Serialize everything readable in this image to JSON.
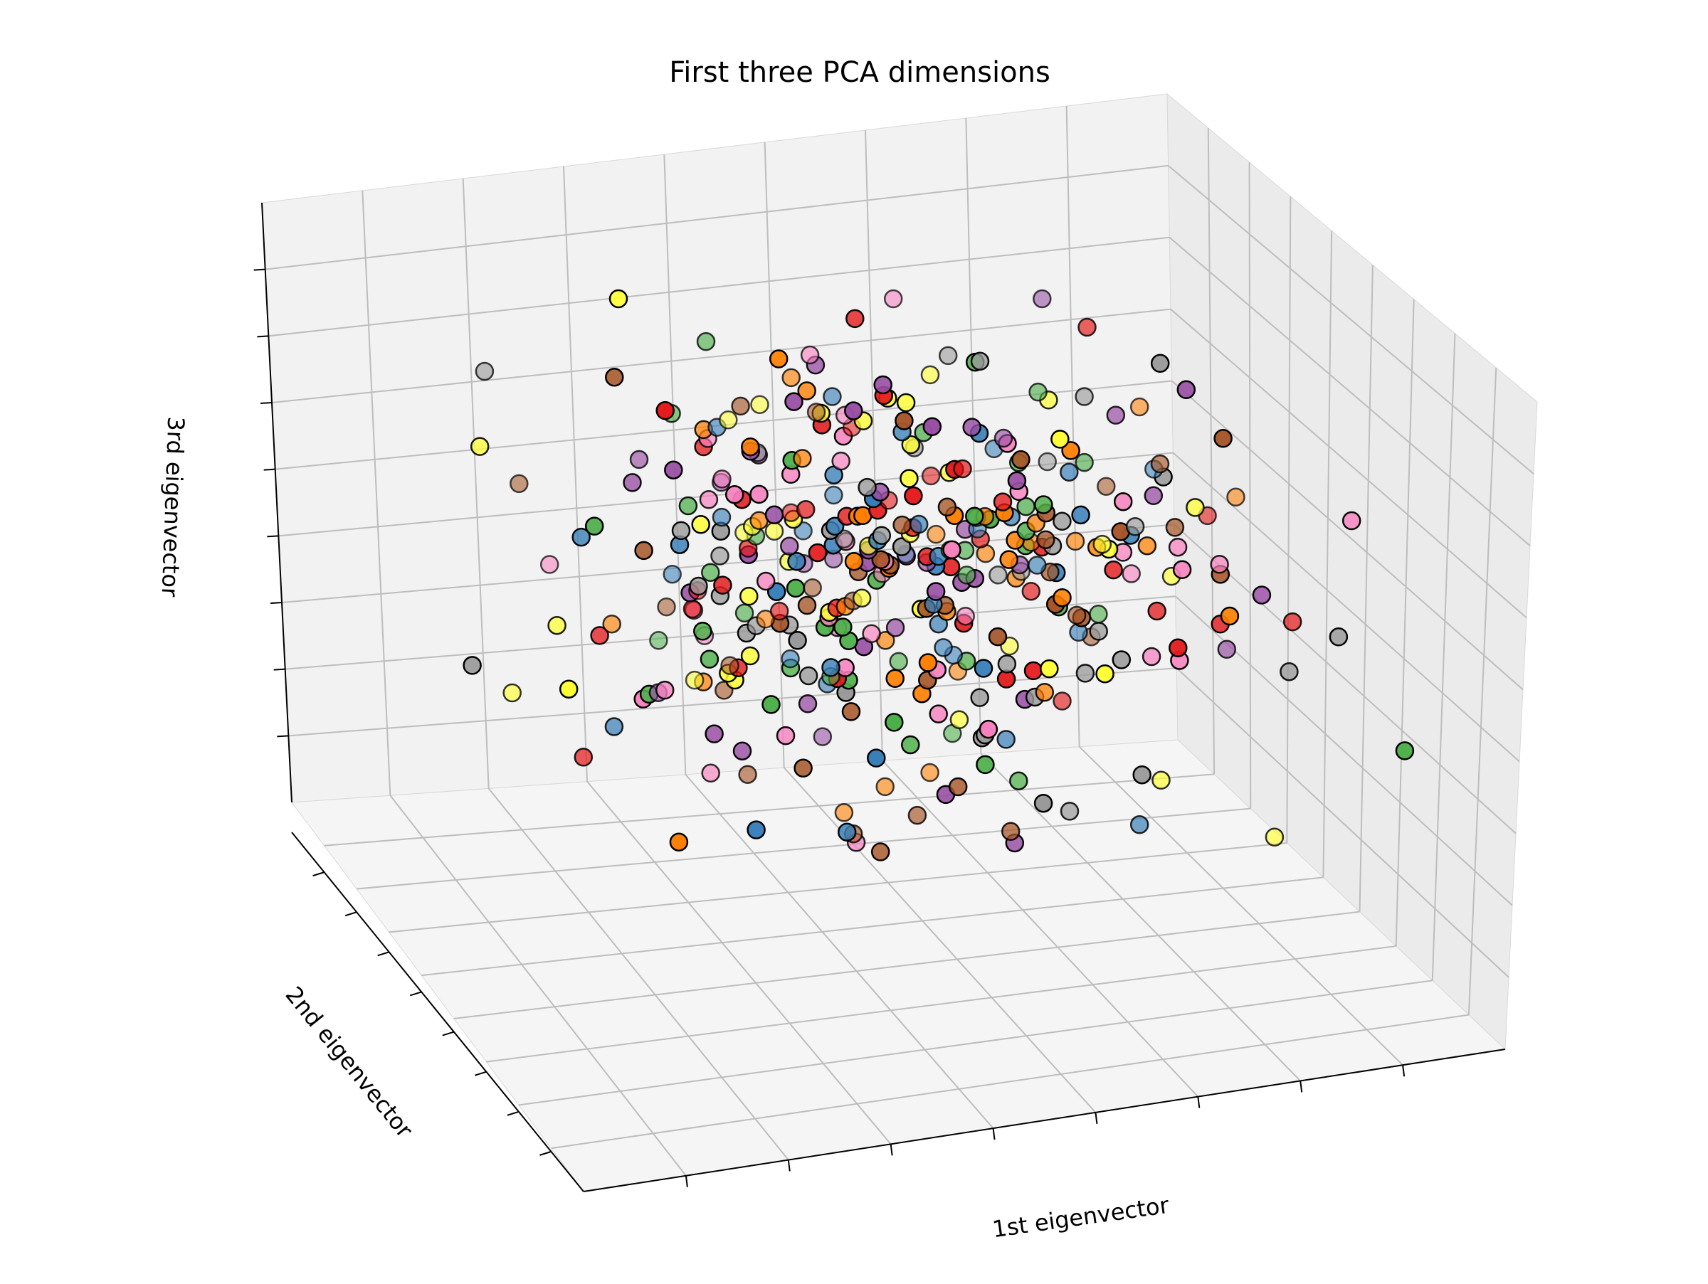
{
  "chart_data": {
    "type": "scatter",
    "projection": "3d",
    "title": "First three PCA dimensions",
    "xlabel": "1st eigenvector",
    "ylabel": "2nd eigenvector",
    "zlabel": "3rd eigenvector",
    "tick_labels_shown": false,
    "grid": true,
    "legend": "none",
    "pane_colors": {
      "back": "#f2f2f2",
      "side": "#ebebeb",
      "floor": "#f5f5f5"
    },
    "grid_color": "#bdbdbd",
    "marker_edge_color": "#000000",
    "colormap": "Set1",
    "palette": [
      "#e41a1c",
      "#377eb8",
      "#4daf4a",
      "#984ea3",
      "#ff7f00",
      "#ffff33",
      "#a65628",
      "#f781bf",
      "#999999"
    ],
    "point_count": 400
  }
}
